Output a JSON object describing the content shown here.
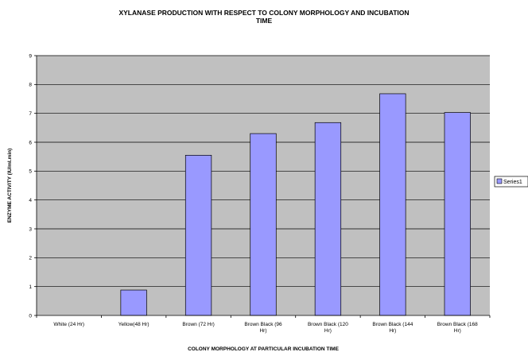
{
  "chart_data": {
    "type": "bar",
    "title_lines": [
      "XYLANASE PRODUCTION WITH RESPECT TO COLONY MORPHOLOGY AND INCUBATION",
      "TIME"
    ],
    "xlabel": "COLONY MORPHOLOGY AT PARTICULAR INCUBATION TIME",
    "ylabel": "ENZYME ACTIVITY (IU/ml.min)",
    "categories": [
      [
        "White (24 Hr)"
      ],
      [
        "Yellow(48 Hr)"
      ],
      [
        "Brown (72 Hr)"
      ],
      [
        "Brown Black (96",
        "Hr)"
      ],
      [
        "Brown Black (120",
        "Hr)"
      ],
      [
        "Brown Black (144",
        "Hr)"
      ],
      [
        "Brown Black (168",
        "Hr)"
      ]
    ],
    "series": [
      {
        "name": "Series1",
        "values": [
          0,
          0.88,
          5.55,
          6.3,
          6.68,
          7.68,
          7.03
        ],
        "color": "#9999ff"
      }
    ],
    "ylim": [
      0,
      9
    ],
    "yticks": [
      0,
      1,
      2,
      3,
      4,
      5,
      6,
      7,
      8,
      9
    ],
    "grid": true,
    "legend_position": "right",
    "plot_background": "#c0c0c0",
    "bar_border": "#000000"
  }
}
